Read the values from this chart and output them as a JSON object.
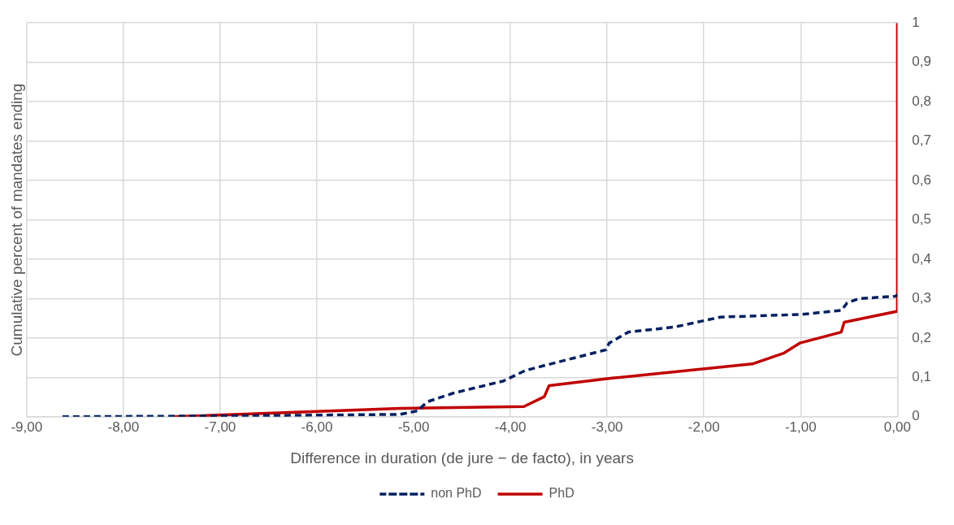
{
  "chart_data": {
    "type": "line",
    "xlabel": "Difference in duration (de jure − de facto), in years",
    "ylabel": "Cumulative percent of mandates ending",
    "xlim": [
      -9,
      0
    ],
    "xticks": [
      {
        "value": -9,
        "label": "-9,00"
      },
      {
        "value": -8,
        "label": "-8,00"
      },
      {
        "value": -7,
        "label": "-7,00"
      },
      {
        "value": -6,
        "label": "-6,00"
      },
      {
        "value": -5,
        "label": "-5,00"
      },
      {
        "value": -4,
        "label": "-4,00"
      },
      {
        "value": -3,
        "label": "-3,00"
      },
      {
        "value": -2,
        "label": "-2,00"
      },
      {
        "value": -1,
        "label": "-1,00"
      },
      {
        "value": 0,
        "label": "0,00"
      }
    ],
    "ylim": [
      0,
      1
    ],
    "yticks": [
      0,
      {
        "value": 0.1,
        "label": "0,1"
      },
      {
        "value": 0.2,
        "label": "0,2"
      },
      {
        "value": 0.3,
        "label": "0,3"
      },
      {
        "value": 0.4,
        "label": "0,4"
      },
      {
        "value": 0.5,
        "label": "0,5"
      },
      {
        "value": 0.6,
        "label": "0,6"
      },
      {
        "value": 0.7,
        "label": "0,7"
      },
      {
        "value": 0.8,
        "label": "0,8"
      },
      {
        "value": 0.9,
        "label": "0,9"
      },
      1
    ],
    "grid": true,
    "legend": "bottom",
    "marker": "none",
    "series": [
      {
        "name": "non PhD",
        "color": "#002060",
        "line_style": "dashed",
        "x": [
          -8.63,
          -7.0,
          -5.14,
          -4.96,
          -4.86,
          -4.59,
          -4.07,
          -3.85,
          -3.65,
          -3.01,
          -2.98,
          -2.78,
          -2.3,
          -1.83,
          -0.99,
          -0.58,
          -0.52,
          -0.4,
          -0.02,
          0
        ],
        "values": [
          0,
          0.002,
          0.006,
          0.015,
          0.038,
          0.06,
          0.091,
          0.117,
          0.13,
          0.17,
          0.187,
          0.215,
          0.228,
          0.253,
          0.26,
          0.27,
          0.289,
          0.3,
          0.306,
          0.31
        ]
      },
      {
        "name": "PhD",
        "color": "#c00000",
        "line_style": "solid",
        "x": [
          -7.48,
          -5.14,
          -3.86,
          -3.65,
          -3.6,
          -2.95,
          -1.5,
          -1.17,
          -1.01,
          -0.58,
          -0.55,
          0,
          0
        ],
        "values": [
          0,
          0.021,
          0.026,
          0.051,
          0.079,
          0.098,
          0.134,
          0.162,
          0.187,
          0.215,
          0.24,
          0.268,
          1
        ]
      }
    ]
  }
}
